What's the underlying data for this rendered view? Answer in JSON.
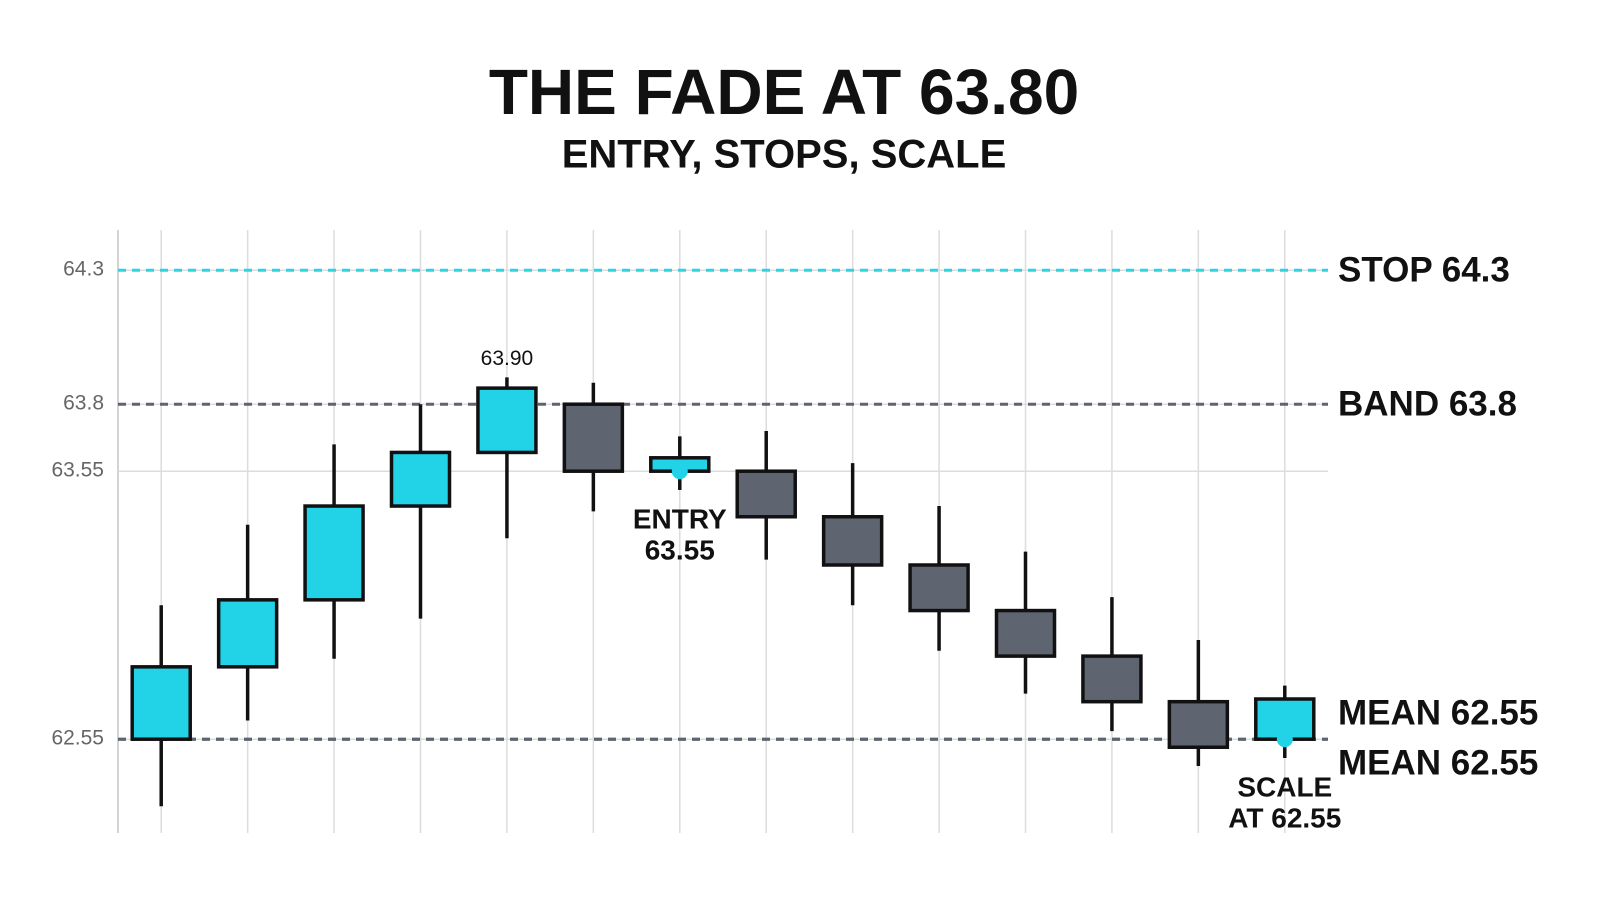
{
  "chart_data": {
    "type": "candlestick",
    "title": "THE FADE AT 63.80",
    "subtitle": "ENTRY, STOPS, SCALE",
    "x": [
      1,
      2,
      3,
      4,
      5,
      6,
      7,
      8,
      9,
      10,
      11,
      12,
      13,
      14
    ],
    "open": [
      62.55,
      62.82,
      63.07,
      63.42,
      63.62,
      63.8,
      63.55,
      63.55,
      63.38,
      63.2,
      63.03,
      62.86,
      62.69,
      62.55
    ],
    "high": [
      63.05,
      63.35,
      63.65,
      63.8,
      63.9,
      63.88,
      63.68,
      63.7,
      63.58,
      63.42,
      63.25,
      63.08,
      62.92,
      62.75
    ],
    "low": [
      62.3,
      62.62,
      62.85,
      63.0,
      63.3,
      63.4,
      63.48,
      63.22,
      63.05,
      62.88,
      62.72,
      62.58,
      62.45,
      62.48
    ],
    "close": [
      62.82,
      63.07,
      63.42,
      63.62,
      63.86,
      63.55,
      63.6,
      63.38,
      63.2,
      63.03,
      62.86,
      62.69,
      62.52,
      62.7
    ],
    "high_value_labels": [
      null,
      null,
      null,
      null,
      "63.90",
      null,
      null,
      null,
      null,
      null,
      null,
      null,
      null,
      null
    ],
    "up_color": "#22d3e8",
    "down_color": "#5f6570",
    "xlim": [
      0.5,
      14.5
    ],
    "ylim": [
      62.2,
      64.45
    ],
    "yticks": [
      62.55,
      63.55,
      63.8,
      64.3
    ],
    "grid": true,
    "levels": [
      {
        "label": "STOP 64.3",
        "value": 64.3,
        "color": "#2fd3e6"
      },
      {
        "label": "BAND 63.8",
        "value": 63.8,
        "color": "#5f6570"
      },
      {
        "label": "MEAN 62.55",
        "value": 62.55,
        "color": "#5f6570"
      },
      {
        "label": "MEAN 62.55",
        "value": 62.55,
        "color": "#5f6570"
      }
    ],
    "markers": [
      {
        "lines": [
          "ENTRY",
          "63.55"
        ],
        "x": 7,
        "value": 63.55,
        "color": "#22d3e8"
      },
      {
        "lines": [
          "SCALE",
          "AT 62.55"
        ],
        "x": 14,
        "value": 62.55,
        "color": "#22d3e8"
      }
    ]
  }
}
